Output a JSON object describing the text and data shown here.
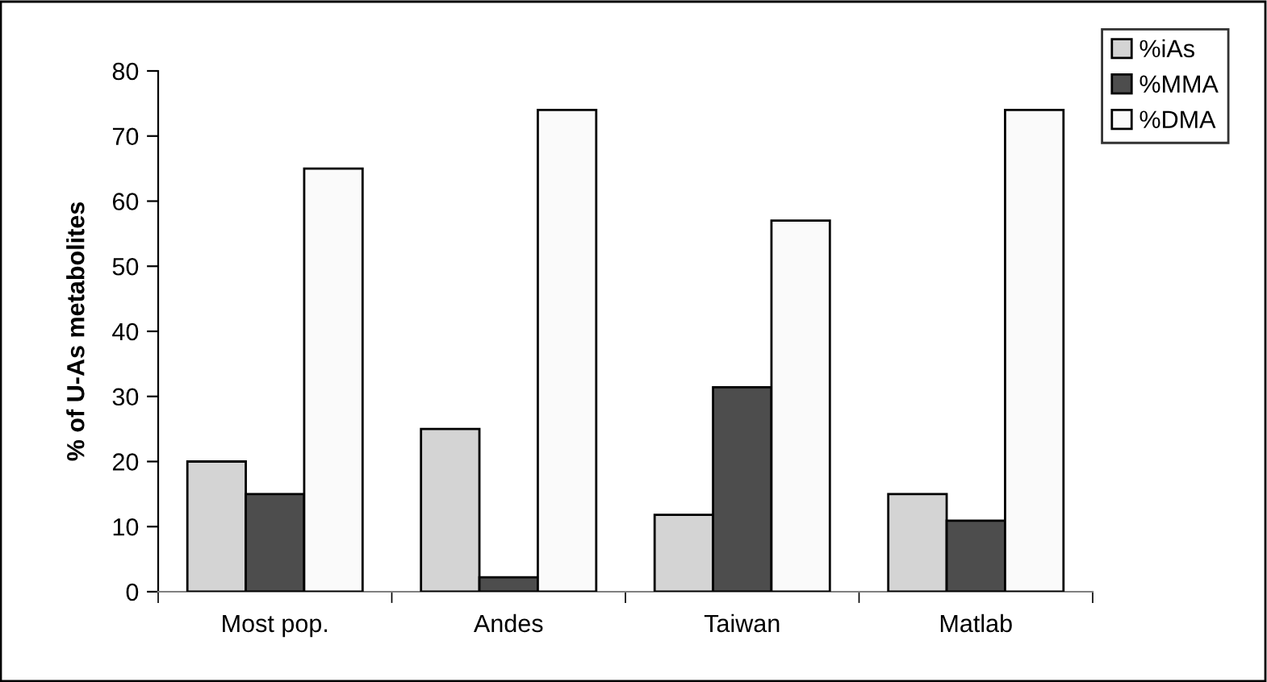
{
  "chart_data": {
    "type": "bar",
    "ylabel": "% of U-As metabolites",
    "categories": [
      "Most pop.",
      "Andes",
      "Taiwan",
      "Matlab"
    ],
    "series": [
      {
        "name": "%iAs",
        "color": "#d4d4d4",
        "values": [
          20,
          25,
          11.8,
          15
        ]
      },
      {
        "name": "%MMA",
        "color": "#4d4d4d",
        "values": [
          15,
          2.2,
          31.4,
          10.9
        ]
      },
      {
        "name": "%DMA",
        "color": "#fafafa",
        "values": [
          65,
          74,
          57,
          74
        ]
      }
    ],
    "ylim": [
      0,
      80
    ],
    "yticks": [
      0,
      10,
      20,
      30,
      40,
      50,
      60,
      70,
      80
    ],
    "grid": false,
    "legend": "top right"
  }
}
